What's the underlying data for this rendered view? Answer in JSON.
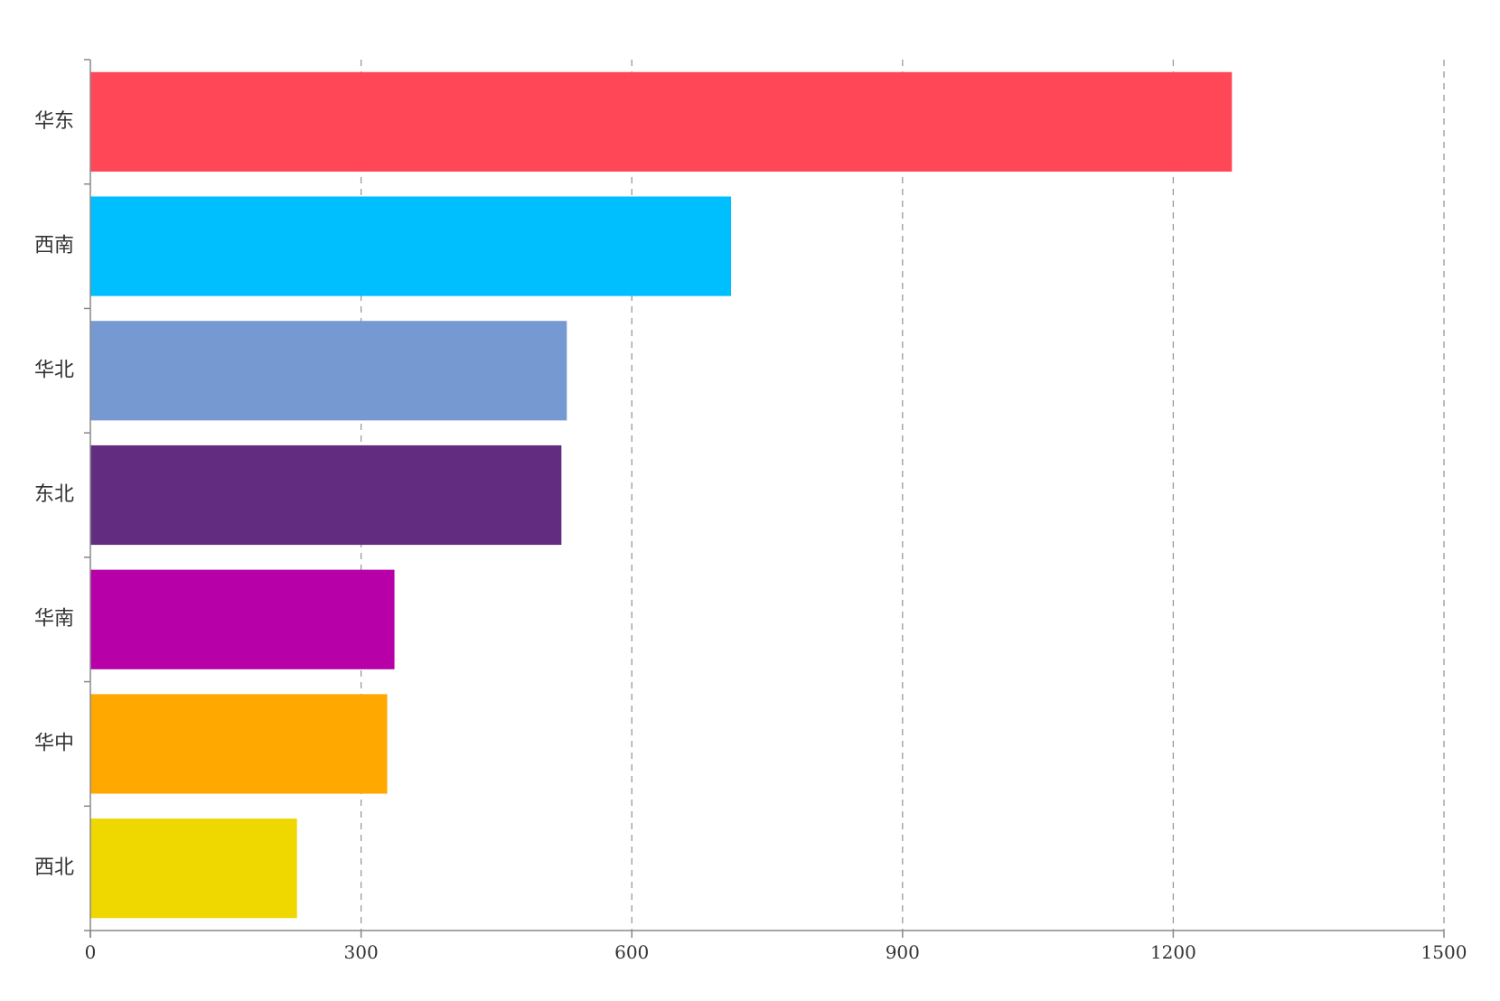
{
  "chart_data": {
    "type": "bar",
    "orientation": "horizontal",
    "categories": [
      "华东",
      "西南",
      "华北",
      "东北",
      "华南",
      "华中",
      "西北"
    ],
    "values": [
      1265,
      710,
      528,
      522,
      337,
      329,
      229
    ],
    "colors": [
      "#FF4757",
      "#00BFFF",
      "#7799D1",
      "#622C80",
      "#B700A8",
      "#FFA800",
      "#EED800"
    ],
    "xlim": [
      0,
      1500
    ],
    "xticks": [
      0,
      300,
      600,
      900,
      1200,
      1500
    ],
    "title": "",
    "xlabel": "",
    "ylabel": "",
    "grid": "vertical-dashed",
    "legend": "none"
  }
}
